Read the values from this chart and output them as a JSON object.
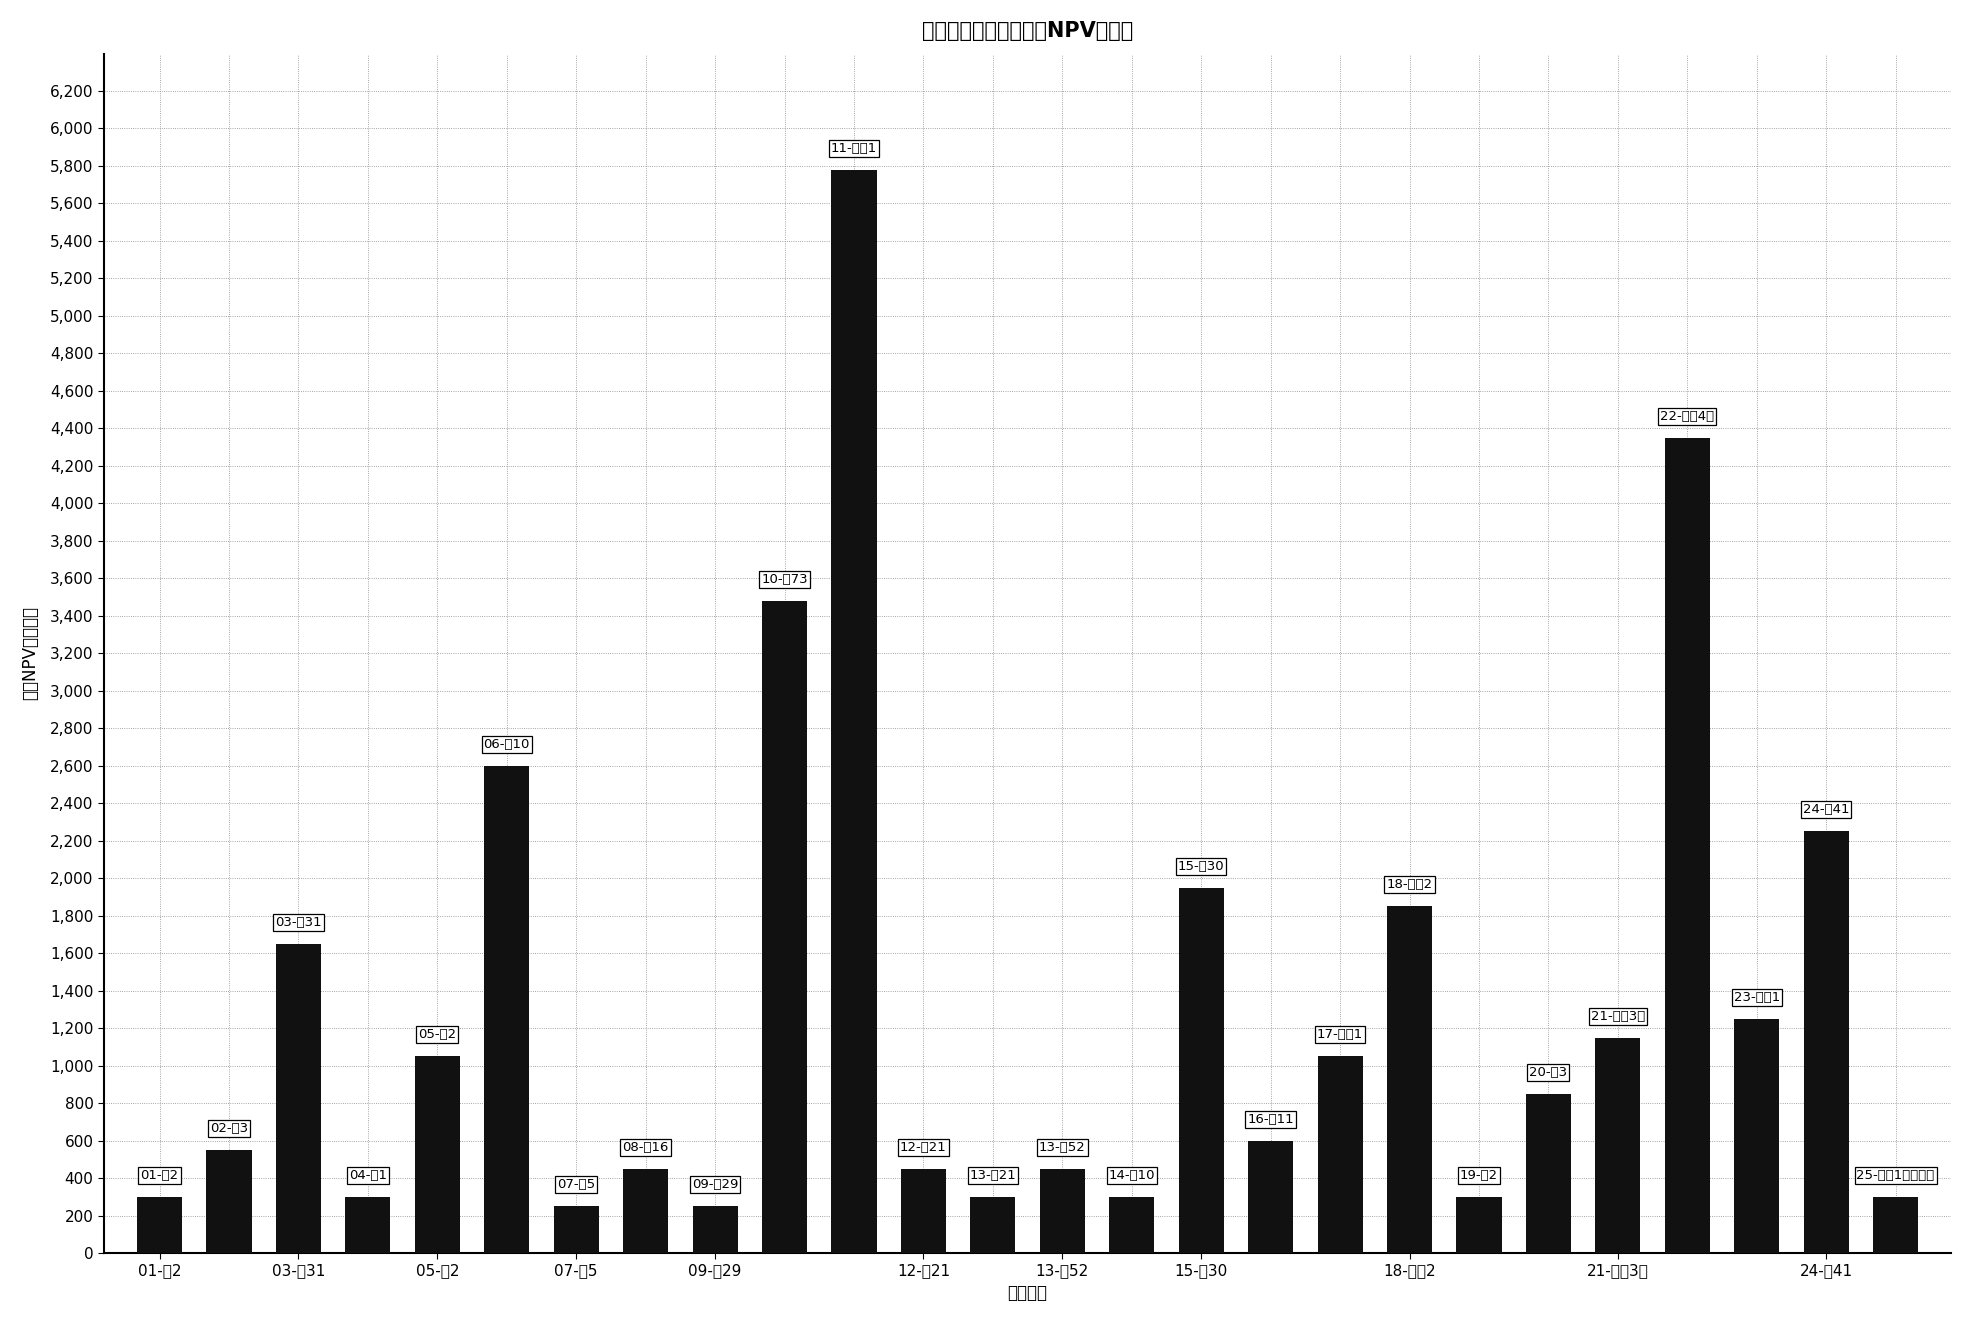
{
  "title": "线性规划法优化后风险NPV结果图",
  "xlabel": "评价目标",
  "ylabel": "风险NPV（万元）",
  "bars": [
    {
      "label": "01-太2",
      "value": 300
    },
    {
      "label": "02-太3",
      "value": 550
    },
    {
      "label": "03-香31",
      "value": 1650
    },
    {
      "label": "04-葩1",
      "value": 300
    },
    {
      "label": "05-葩2",
      "value": 1050
    },
    {
      "label": "06-后10",
      "value": 2600
    },
    {
      "label": "07-瑘5",
      "value": 250
    },
    {
      "label": "08-丰16",
      "value": 450
    },
    {
      "label": "09-徉29",
      "value": 250
    },
    {
      "label": "10-氓73",
      "value": 3480
    },
    {
      "label": "11-源岡1",
      "value": 5780
    },
    {
      "label": "12-宆21",
      "value": 450
    },
    {
      "label": "13-尙21",
      "value": 300
    },
    {
      "label": "13-尙52",
      "value": 450
    },
    {
      "label": "14-愄10",
      "value": 300
    },
    {
      "label": "15-兰30",
      "value": 1950
    },
    {
      "label": "16-万11",
      "value": 600
    },
    {
      "label": "17-英岡1",
      "value": 1050
    },
    {
      "label": "18-英岡2",
      "value": 1850
    },
    {
      "label": "19-唇2",
      "value": 300
    },
    {
      "label": "20-唇3",
      "value": 850
    },
    {
      "label": "21-兴坙3号",
      "value": 1150
    },
    {
      "label": "22-兴坙4号",
      "value": 4350
    },
    {
      "label": "23-宋站1",
      "value": 1250
    },
    {
      "label": "24-三41",
      "value": 2250
    },
    {
      "label": "25-安达1号火山木",
      "value": 300
    }
  ],
  "annotations": [
    {
      "xi": 0,
      "val": 300,
      "text": "01-太2",
      "ha": "center",
      "va": "bottom"
    },
    {
      "xi": 1,
      "val": 550,
      "text": "02-太3",
      "ha": "center",
      "va": "bottom"
    },
    {
      "xi": 2,
      "val": 1650,
      "text": "03-香31",
      "ha": "center",
      "va": "bottom"
    },
    {
      "xi": 3,
      "val": 300,
      "text": "04-葩1",
      "ha": "center",
      "va": "bottom"
    },
    {
      "xi": 4,
      "val": 1050,
      "text": "05-葩2",
      "ha": "center",
      "va": "bottom"
    },
    {
      "xi": 5,
      "val": 2600,
      "text": "06-后10",
      "ha": "center",
      "va": "bottom"
    },
    {
      "xi": 6,
      "val": 250,
      "text": "07-瑘5",
      "ha": "center",
      "va": "bottom"
    },
    {
      "xi": 7,
      "val": 450,
      "text": "08-丰16",
      "ha": "center",
      "va": "bottom"
    },
    {
      "xi": 8,
      "val": 250,
      "text": "09-徉29",
      "ha": "center",
      "va": "bottom"
    },
    {
      "xi": 9,
      "val": 3480,
      "text": "10-氓73",
      "ha": "center",
      "va": "bottom"
    },
    {
      "xi": 10,
      "val": 5780,
      "text": "11-源岡1",
      "ha": "center",
      "va": "bottom"
    },
    {
      "xi": 11,
      "val": 450,
      "text": "12-宆21",
      "ha": "center",
      "va": "bottom"
    },
    {
      "xi": 12,
      "val": 300,
      "text": "13-尙21",
      "ha": "center",
      "va": "bottom"
    },
    {
      "xi": 13,
      "val": 450,
      "text": "13-尙52",
      "ha": "center",
      "va": "bottom"
    },
    {
      "xi": 14,
      "val": 300,
      "text": "14-愄10",
      "ha": "center",
      "va": "bottom"
    },
    {
      "xi": 15,
      "val": 1950,
      "text": "15-兰30",
      "ha": "center",
      "va": "bottom"
    },
    {
      "xi": 16,
      "val": 600,
      "text": "16-万11",
      "ha": "center",
      "va": "bottom"
    },
    {
      "xi": 17,
      "val": 1050,
      "text": "17-英岡1",
      "ha": "center",
      "va": "bottom"
    },
    {
      "xi": 18,
      "val": 1850,
      "text": "18-英岡2",
      "ha": "center",
      "va": "bottom"
    },
    {
      "xi": 19,
      "val": 300,
      "text": "19-唇2",
      "ha": "center",
      "va": "bottom"
    },
    {
      "xi": 20,
      "val": 850,
      "text": "20-唇3",
      "ha": "center",
      "va": "bottom"
    },
    {
      "xi": 21,
      "val": 1150,
      "text": "21-兴坙3号",
      "ha": "center",
      "va": "bottom"
    },
    {
      "xi": 22,
      "val": 4350,
      "text": "22-兴坙4号",
      "ha": "center",
      "va": "bottom"
    },
    {
      "xi": 23,
      "val": 1250,
      "text": "23-宋站1",
      "ha": "center",
      "va": "bottom"
    },
    {
      "xi": 24,
      "val": 2250,
      "text": "24-三41",
      "ha": "center",
      "va": "bottom"
    },
    {
      "xi": 25,
      "val": 300,
      "text": "25-安达1号火山木",
      "ha": "center",
      "va": "bottom"
    }
  ],
  "xtick_positions": [
    0,
    2,
    4,
    6,
    8,
    11,
    13,
    15,
    18,
    21,
    24
  ],
  "xtick_labels": [
    "01-太2",
    "03-香31",
    "05-葩2",
    "07-瑘5",
    "09-徉29",
    "12-宆21",
    "13-尙52",
    "15-兰30",
    "18-英岡2",
    "21-兴坙3号",
    "24-三41"
  ],
  "ytick_labels": [
    "0",
    "200",
    "400",
    "600",
    "800",
    "1,000",
    "1,200",
    "1,400",
    "1,600",
    "1,800",
    "2,000",
    "2,200",
    "2,400",
    "2,600",
    "2,800",
    "3,000",
    "3,200",
    "3,400",
    "3,600",
    "3,800",
    "4,000",
    "4,200",
    "4,400",
    "4,600",
    "4,800",
    "5,000",
    "5,200",
    "5,400",
    "5,600",
    "5,800",
    "6,000",
    "6,200"
  ],
  "ylim": [
    0,
    6400
  ],
  "ytick_vals": [
    0,
    200,
    400,
    600,
    800,
    1000,
    1200,
    1400,
    1600,
    1800,
    2000,
    2200,
    2400,
    2600,
    2800,
    3000,
    3200,
    3400,
    3600,
    3800,
    4000,
    4200,
    4400,
    4600,
    4800,
    5000,
    5200,
    5400,
    5600,
    5800,
    6000,
    6200
  ],
  "bar_color": "#111111",
  "bar_width": 0.65,
  "background_color": "#ffffff",
  "grid_color": "#888888",
  "title_fontsize": 15,
  "label_fontsize": 12,
  "tick_fontsize": 11,
  "annotation_fontsize": 9.5
}
